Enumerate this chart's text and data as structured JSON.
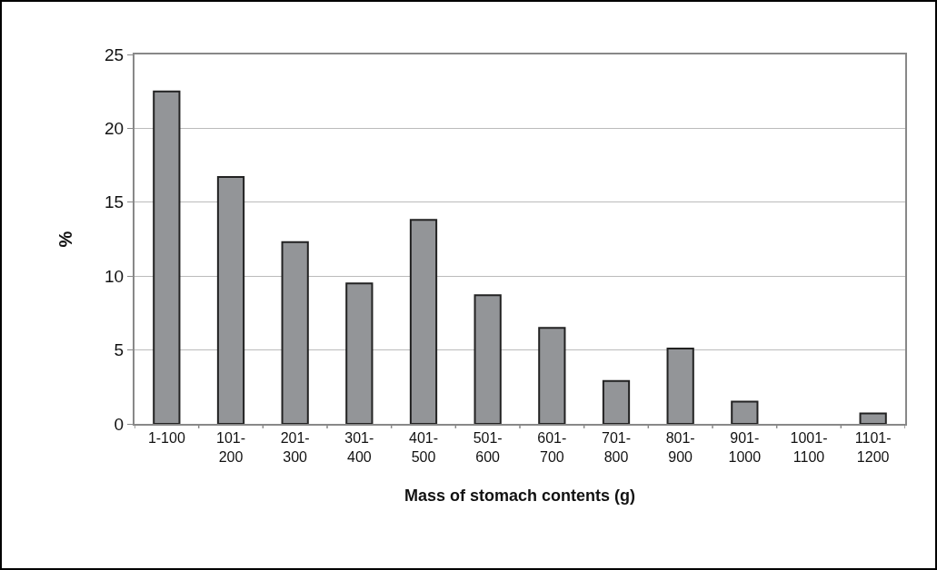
{
  "chart_data": {
    "type": "bar",
    "xlabel": "Mass of stomach contents (g)",
    "ylabel": "%",
    "categories": [
      "1-100",
      "101-200",
      "201-300",
      "301-400",
      "401-500",
      "501-600",
      "601-700",
      "701-800",
      "801-900",
      "901-1000",
      "1001-1100",
      "1101-1200"
    ],
    "values": [
      22.5,
      16.7,
      12.3,
      9.5,
      13.8,
      8.7,
      6.5,
      2.9,
      5.1,
      1.5,
      0,
      0.7
    ],
    "color": "#939598",
    "ylim": [
      0,
      25
    ],
    "yticks": [
      0,
      5,
      10,
      15,
      20,
      25
    ],
    "grid": "y"
  }
}
